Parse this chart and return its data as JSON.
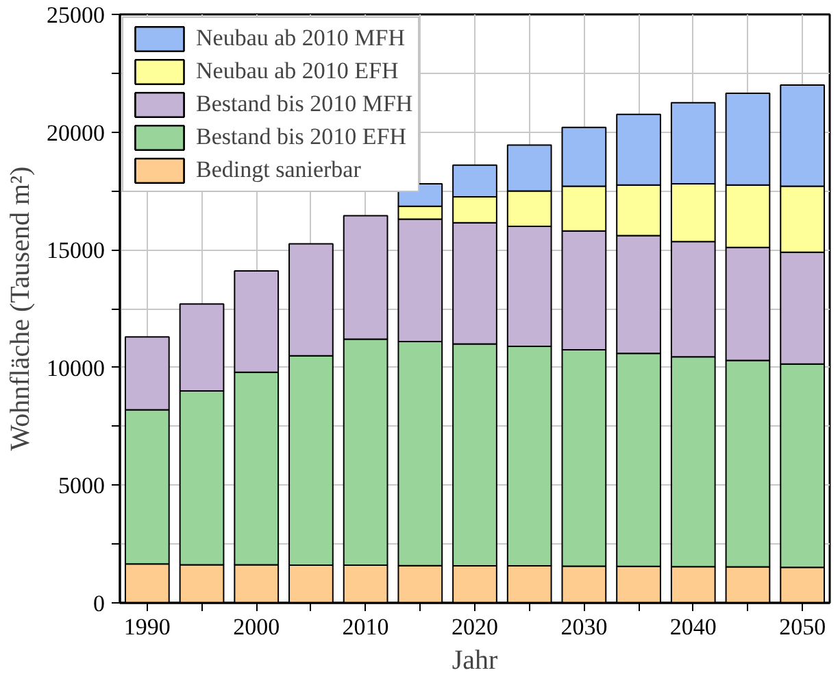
{
  "chart_data": {
    "type": "bar",
    "stacked": true,
    "xlabel": "Jahr",
    "ylabel": "Wohnfläche (Tausend m²)",
    "x": [
      1990,
      1995,
      2000,
      2005,
      2010,
      2015,
      2020,
      2025,
      2030,
      2035,
      2040,
      2045,
      2050
    ],
    "series": [
      {
        "name": "Bedingt sanierbar",
        "color": "#ffcc8f",
        "values": [
          1650,
          1620,
          1620,
          1600,
          1600,
          1580,
          1570,
          1570,
          1560,
          1550,
          1540,
          1530,
          1510
        ]
      },
      {
        "name": "Bestand bis 2010 EFH",
        "color": "#99d59a",
        "values": [
          6550,
          7380,
          8180,
          8900,
          9600,
          9520,
          9430,
          9330,
          9190,
          9050,
          8910,
          8770,
          8640
        ]
      },
      {
        "name": "Bestand bis 2010 MFH",
        "color": "#c5b3d6",
        "values": [
          3100,
          3700,
          4300,
          4750,
          5250,
          5200,
          5150,
          5100,
          5050,
          5000,
          4900,
          4800,
          4750
        ]
      },
      {
        "name": "Neubau ab 2010 EFH",
        "color": "#ffff99",
        "values": [
          null,
          null,
          null,
          null,
          null,
          550,
          1100,
          1500,
          1900,
          2150,
          2450,
          2650,
          2800
        ]
      },
      {
        "name": "Neubau ab 2010 MFH",
        "color": "#99bbf5",
        "values": [
          null,
          null,
          null,
          null,
          null,
          950,
          1350,
          1950,
          2500,
          3000,
          3450,
          3900,
          4300
        ]
      }
    ],
    "xlim": [
      1987.5,
      2052.5
    ],
    "xticks": [
      1990,
      {
        "value": 1995,
        "label": null
      },
      2000,
      {
        "value": 2005,
        "label": null
      },
      2010,
      {
        "value": 2015,
        "label": null
      },
      2020,
      {
        "value": 2025,
        "label": null
      },
      2030,
      {
        "value": 2035,
        "label": null
      },
      2040,
      {
        "value": 2045,
        "label": null
      },
      2050
    ],
    "ylim": [
      0,
      25000
    ],
    "yticks": [
      0,
      {
        "value": 2500,
        "label": null
      },
      5000,
      {
        "value": 7500,
        "label": null
      },
      10000,
      {
        "value": 12500,
        "label": null
      },
      15000,
      {
        "value": 17500,
        "label": null
      },
      20000,
      {
        "value": 22500,
        "label": null
      },
      25000
    ],
    "grid": true,
    "legend": "top left"
  }
}
